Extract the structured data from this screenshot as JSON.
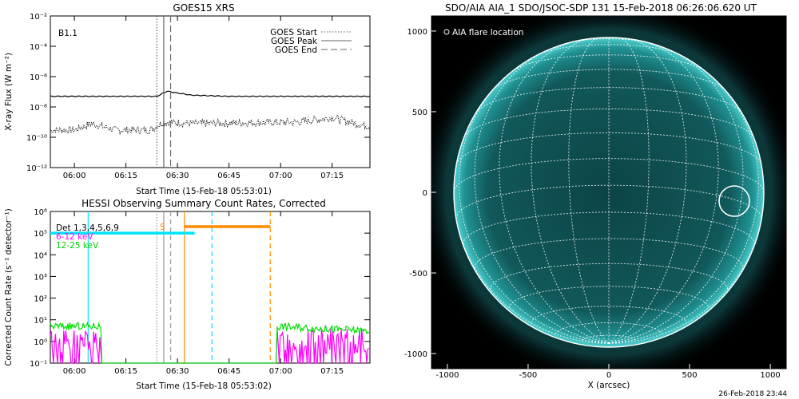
{
  "goes": {
    "title": "GOES15 XRS",
    "class_label": "B1.1",
    "ylabel": "X-ray Flux (W m⁻²)",
    "xlabel": "Start Time (15-Feb-18 05:53:01)",
    "legend": [
      "GOES Start",
      "GOES Peak",
      "GOES End"
    ],
    "x_ticks": [
      "06:00",
      "06:15",
      "06:30",
      "06:45",
      "07:00",
      "07:15"
    ],
    "y_ticks": [
      "10⁻²",
      "10⁻⁴",
      "10⁻⁶",
      "10⁻⁸",
      "10⁻¹⁰",
      "10⁻¹²"
    ]
  },
  "hessi": {
    "title": "HESSI Observing Summary Count Rates, Corrected",
    "ylabel": "Corrected Count Rate (s⁻¹ detector⁻¹)",
    "xlabel": "Start Time (15-Feb-18 05:53:02)",
    "legend": [
      "Det 1,3,4,5,6,9",
      "6-12 keV",
      "12-25 keV"
    ],
    "marker": "S",
    "x_ticks": [
      "06:00",
      "06:15",
      "06:30",
      "06:45",
      "07:00",
      "07:15"
    ],
    "y_ticks": [
      "10⁶",
      "10⁵",
      "10⁴",
      "10³",
      "10²",
      "10¹",
      "10⁰",
      "10⁻¹"
    ]
  },
  "aia": {
    "title": "SDO/AIA AIA_1 SDO/JSOC-SDP 131 15-Feb-2018 06:26:06.620 UT",
    "legend": "AIA flare location",
    "xlabel": "X (arcsec)",
    "x_ticks": [
      "-1000",
      "-500",
      "0",
      "500",
      "1000"
    ],
    "y_ticks": [
      "1000",
      "500",
      "0",
      "-500",
      "-1000"
    ],
    "footer": "26-Feb-2018 23:44"
  },
  "chart_data": [
    {
      "type": "line",
      "title": "GOES15 XRS",
      "xlabel": "Start Time (15-Feb-18 05:53:01)",
      "ylabel": "X-ray Flux (W m⁻²)",
      "yscale": "log",
      "ylim": [
        1e-12,
        0.01
      ],
      "xlim": [
        "05:53",
        "07:26"
      ],
      "series": [
        {
          "name": "long channel",
          "x": [
            "05:53",
            "06:10",
            "06:24",
            "06:27",
            "06:29",
            "06:34",
            "06:45",
            "07:00",
            "07:26"
          ],
          "y": [
            5e-08,
            5e-08,
            5e-08,
            1.1e-07,
            9e-08,
            6e-08,
            5e-08,
            5e-08,
            5e-08
          ]
        },
        {
          "name": "short channel",
          "x": [
            "05:53",
            "06:00",
            "06:05",
            "06:12",
            "06:22",
            "06:26",
            "06:35",
            "06:50",
            "07:05",
            "07:15",
            "07:22",
            "07:26"
          ],
          "y": [
            3e-10,
            3e-10,
            8e-10,
            3e-10,
            3e-10,
            1e-09,
            8e-10,
            9e-10,
            1e-09,
            2e-09,
            8e-10,
            5e-10
          ]
        }
      ],
      "vlines": [
        {
          "name": "GOES Start",
          "x": "06:24"
        },
        {
          "name": "GOES Peak",
          "x": "06:26"
        },
        {
          "name": "GOES End",
          "x": "06:28"
        }
      ],
      "annotation": "B1.1"
    },
    {
      "type": "line",
      "title": "HESSI Observing Summary Count Rates, Corrected",
      "xlabel": "Start Time (15-Feb-18 05:53:02)",
      "ylabel": "Corrected Count Rate (s⁻¹ detector⁻¹)",
      "yscale": "log",
      "ylim": [
        0.1,
        1000000.0
      ],
      "series": [
        {
          "name": "6-12 keV",
          "color": "#ff00ff",
          "x": [
            "05:53",
            "06:08",
            "06:08",
            "06:59",
            "06:59",
            "07:26"
          ],
          "y": [
            1,
            1,
            0.1,
            0.1,
            1,
            1
          ]
        },
        {
          "name": "12-25 keV",
          "color": "#00e000",
          "x": [
            "05:53",
            "06:08",
            "06:08",
            "06:59",
            "06:59",
            "07:26"
          ],
          "y": [
            5,
            5,
            0.1,
            0.1,
            5,
            3
          ]
        }
      ],
      "intervals": [
        {
          "color": "#00e5ff",
          "x": [
            "05:53",
            "06:35"
          ],
          "y": 100000.0
        },
        {
          "color": "#ff8c00",
          "x": [
            "06:32",
            "06:57"
          ],
          "y": 200000.0
        }
      ],
      "vlines": [
        {
          "color": "#00e5ff",
          "x": "06:04",
          "style": "solid"
        },
        {
          "color": "#00e5ff",
          "x": "06:40",
          "style": "dashed"
        },
        {
          "color": "#ff8c00",
          "x": "06:32",
          "style": "solid"
        },
        {
          "color": "#ff8c00",
          "x": "06:57",
          "style": "dashed"
        },
        {
          "color": "#999999",
          "x": "06:24",
          "style": "dotted"
        },
        {
          "color": "#999999",
          "x": "06:26",
          "style": "solid"
        },
        {
          "color": "#999999",
          "x": "06:28",
          "style": "dashed"
        }
      ]
    },
    {
      "type": "image",
      "title": "SDO/AIA AIA_1 SDO/JSOC-SDP 131 15-Feb-2018 06:26:06.620 UT",
      "xlabel": "X (arcsec)",
      "xlim": [
        -1100,
        1100
      ],
      "ylim": [
        -1100,
        1100
      ],
      "flare_location_arcsec": [
        780,
        -10
      ]
    }
  ]
}
